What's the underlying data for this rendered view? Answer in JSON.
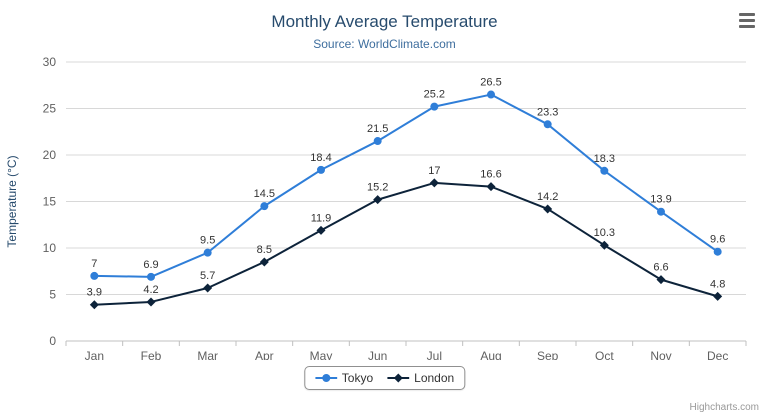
{
  "header": {
    "title": "Monthly Average Temperature",
    "subtitle": "Source: WorldClimate.com"
  },
  "credits": "Highcharts.com",
  "icons": {
    "menu": "hamburger-icon"
  },
  "chart_data": {
    "type": "line",
    "title": "Monthly Average Temperature",
    "subtitle": "Source: WorldClimate.com",
    "categories": [
      "Jan",
      "Feb",
      "Mar",
      "Apr",
      "May",
      "Jun",
      "Jul",
      "Aug",
      "Sep",
      "Oct",
      "Nov",
      "Dec"
    ],
    "series": [
      {
        "name": "Tokyo",
        "color": "#2f7ed8",
        "marker": "circle",
        "values": [
          7,
          6.9,
          9.5,
          14.5,
          18.4,
          21.5,
          25.2,
          26.5,
          23.3,
          18.3,
          13.9,
          9.6
        ]
      },
      {
        "name": "London",
        "color": "#0d233a",
        "marker": "diamond",
        "values": [
          3.9,
          4.2,
          5.7,
          8.5,
          11.9,
          15.2,
          17,
          16.6,
          14.2,
          10.3,
          6.6,
          4.8
        ]
      }
    ],
    "xlabel": "",
    "ylabel": "Temperature (°C)",
    "ylim": [
      0,
      30
    ],
    "ytick_step": 5,
    "grid": true,
    "legend_position": "bottom",
    "data_labels": true
  }
}
